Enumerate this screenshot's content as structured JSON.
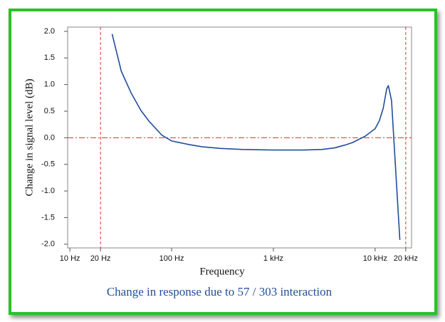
{
  "chart_data": {
    "type": "line",
    "caption": "Change in response due to 57 / 303 interaction",
    "x_label": "Frequency",
    "y_label": "Change in signal level (dB)",
    "log_x": true,
    "xlim": [
      9.5,
      22800
    ],
    "ylim": [
      -2.07,
      2.08
    ],
    "xticks": [
      {
        "value": 10,
        "label": "10 Hz"
      },
      {
        "value": 20,
        "label": "20 Hz"
      },
      {
        "value": 100,
        "label": "100 Hz"
      },
      {
        "value": 1000,
        "label": "1 kHz"
      },
      {
        "value": 10000,
        "label": "10 kHz"
      },
      {
        "value": 20000,
        "label": "20 kHz"
      }
    ],
    "yticks": [
      {
        "value": 2,
        "label": "2.0"
      },
      1.5,
      {
        "value": 1,
        "label": "1.0"
      },
      0.5,
      {
        "value": 0,
        "label": "0.0"
      },
      -0.5,
      {
        "value": -1,
        "label": "-1.0"
      },
      -1.5,
      {
        "value": -2,
        "label": "-2.0"
      }
    ],
    "vlines": [
      20,
      20000
    ],
    "hline": 0,
    "reference_color": "#d9342b",
    "x": [
      26,
      32,
      40,
      50,
      60,
      80,
      100,
      150,
      200,
      300,
      500,
      1000,
      2000,
      3000,
      4000,
      5000,
      6000,
      8000,
      10000,
      11000,
      12000,
      13000,
      13500,
      14500,
      17500
    ],
    "series": [
      {
        "color": "#1f4e9a",
        "values": [
          1.95,
          1.25,
          0.84,
          0.51,
          0.31,
          0.05,
          -0.06,
          -0.13,
          -0.17,
          -0.2,
          -0.22,
          -0.23,
          -0.23,
          -0.22,
          -0.19,
          -0.14,
          -0.09,
          0.03,
          0.17,
          0.32,
          0.55,
          0.92,
          0.98,
          0.7,
          -1.92
        ]
      }
    ]
  }
}
